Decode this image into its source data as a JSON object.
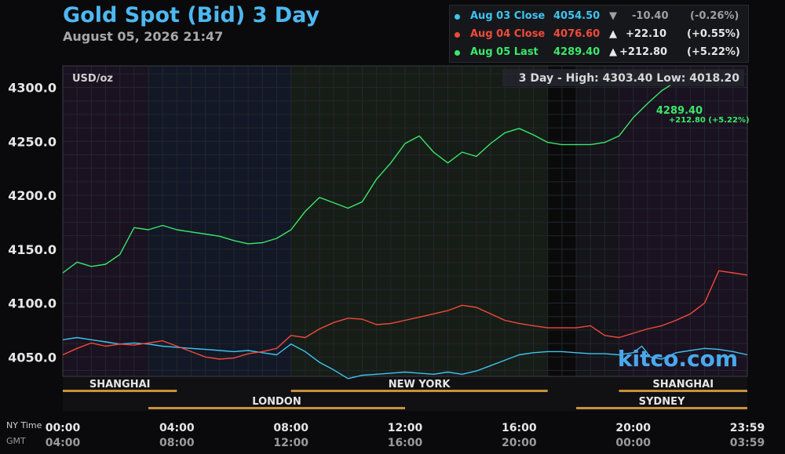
{
  "header": {
    "title": "Gold Spot (Bid) 3 Day",
    "subtitle": "August 05, 2026 21:47"
  },
  "legend": [
    {
      "label": "Aug 03 Close",
      "price": "4054.50",
      "arrow": "▼",
      "change": "-10.40",
      "pct": "(-0.26%)",
      "color": "#3ec4f0",
      "change_color": "#a0a0a0"
    },
    {
      "label": "Aug 04 Close",
      "price": "4076.60",
      "arrow": "▲",
      "change": "+22.10",
      "pct": "(+0.55%)",
      "color": "#f04a3a",
      "change_color": "#e8e8e8"
    },
    {
      "label": "Aug 05 Last",
      "price": "4289.40",
      "arrow": "▲",
      "change": "+212.80",
      "pct": "(+5.22%)",
      "color": "#3ae86a",
      "change_color": "#e8e8e8"
    }
  ],
  "chart_data": {
    "type": "line",
    "unit_label": "USD/oz",
    "range_text": "3 Day - High: 4303.40  Low: 4018.20",
    "ylim": [
      4032,
      4320
    ],
    "yticks": [
      {
        "v": 4050,
        "label": "4050.0"
      },
      {
        "v": 4100,
        "label": "4100.0"
      },
      {
        "v": 4150,
        "label": "4150.0"
      },
      {
        "v": 4200,
        "label": "4200.0"
      },
      {
        "v": 4250,
        "label": "4250.0"
      },
      {
        "v": 4300,
        "label": "4300.0"
      }
    ],
    "xlim": [
      0,
      24
    ],
    "xticks": [
      {
        "h": 0,
        "ny": "00:00",
        "gmt": "04:00"
      },
      {
        "h": 4,
        "ny": "04:00",
        "gmt": "08:00"
      },
      {
        "h": 8,
        "ny": "08:00",
        "gmt": "12:00"
      },
      {
        "h": 12,
        "ny": "12:00",
        "gmt": "16:00"
      },
      {
        "h": 16,
        "ny": "16:00",
        "gmt": "20:00"
      },
      {
        "h": 20,
        "ny": "20:00",
        "gmt": "00:00"
      },
      {
        "h": 24,
        "ny": "23:59",
        "gmt": "03:59"
      }
    ],
    "ny_time_label": "NY Time",
    "gmt_label": "GMT",
    "watermark": "kitco.com",
    "last_label": "4289.40",
    "last_change": "+212.80 (+5.22%)",
    "sessions": [
      {
        "name": "SHANGHAI",
        "start": 0,
        "end": 4,
        "row": 0
      },
      {
        "name": "NEW YORK",
        "start": 8,
        "end": 17,
        "row": 0
      },
      {
        "name": "SHANGHAI",
        "start": 19.5,
        "end": 24,
        "row": 0
      },
      {
        "name": "LONDON",
        "start": 3,
        "end": 12,
        "row": 1
      },
      {
        "name": "SYDNEY",
        "start": 18,
        "end": 24,
        "row": 1
      }
    ],
    "series": [
      {
        "name": "Aug 03 Close",
        "color": "#3ec4f0",
        "points": [
          [
            0,
            4066
          ],
          [
            0.5,
            4068
          ],
          [
            1,
            4066
          ],
          [
            1.5,
            4064
          ],
          [
            2,
            4062
          ],
          [
            2.5,
            4063
          ],
          [
            3,
            4062
          ],
          [
            3.5,
            4060
          ],
          [
            4,
            4059
          ],
          [
            4.5,
            4058
          ],
          [
            5,
            4057
          ],
          [
            5.5,
            4056
          ],
          [
            6,
            4055
          ],
          [
            6.5,
            4056
          ],
          [
            7,
            4054
          ],
          [
            7.5,
            4052
          ],
          [
            8,
            4062
          ],
          [
            8.5,
            4055
          ],
          [
            9,
            4045
          ],
          [
            9.5,
            4038
          ],
          [
            10,
            4030
          ],
          [
            10.5,
            4033
          ],
          [
            11,
            4034
          ],
          [
            11.5,
            4035
          ],
          [
            12,
            4036
          ],
          [
            12.5,
            4035
          ],
          [
            13,
            4034
          ],
          [
            13.5,
            4036
          ],
          [
            14,
            4034
          ],
          [
            14.5,
            4037
          ],
          [
            15,
            4042
          ],
          [
            15.5,
            4047
          ],
          [
            16,
            4052
          ],
          [
            16.5,
            4054
          ],
          [
            17,
            4055
          ],
          [
            17.5,
            4055
          ],
          [
            18,
            4054
          ],
          [
            18.5,
            4053
          ],
          [
            19,
            4053
          ],
          [
            19.5,
            4052
          ],
          [
            20,
            4054
          ],
          [
            20.3,
            4060
          ],
          [
            20.6,
            4050
          ],
          [
            21,
            4048
          ],
          [
            21.5,
            4054
          ],
          [
            22,
            4056
          ],
          [
            22.5,
            4058
          ],
          [
            23,
            4057
          ],
          [
            23.5,
            4055
          ],
          [
            24,
            4052
          ]
        ]
      },
      {
        "name": "Aug 04 Close",
        "color": "#f04a3a",
        "points": [
          [
            0,
            4052
          ],
          [
            0.5,
            4058
          ],
          [
            1,
            4063
          ],
          [
            1.5,
            4060
          ],
          [
            2,
            4062
          ],
          [
            2.5,
            4061
          ],
          [
            3,
            4063
          ],
          [
            3.5,
            4065
          ],
          [
            4,
            4060
          ],
          [
            4.5,
            4055
          ],
          [
            5,
            4050
          ],
          [
            5.5,
            4048
          ],
          [
            6,
            4049
          ],
          [
            6.5,
            4053
          ],
          [
            7,
            4055
          ],
          [
            7.5,
            4058
          ],
          [
            8,
            4070
          ],
          [
            8.5,
            4068
          ],
          [
            9,
            4076
          ],
          [
            9.5,
            4082
          ],
          [
            10,
            4086
          ],
          [
            10.5,
            4085
          ],
          [
            11,
            4080
          ],
          [
            11.5,
            4081
          ],
          [
            12,
            4084
          ],
          [
            12.5,
            4087
          ],
          [
            13,
            4090
          ],
          [
            13.5,
            4093
          ],
          [
            14,
            4098
          ],
          [
            14.5,
            4096
          ],
          [
            15,
            4090
          ],
          [
            15.5,
            4084
          ],
          [
            16,
            4081
          ],
          [
            16.5,
            4079
          ],
          [
            17,
            4077
          ],
          [
            17.5,
            4077
          ],
          [
            18,
            4077
          ],
          [
            18.5,
            4079
          ],
          [
            19,
            4070
          ],
          [
            19.5,
            4068
          ],
          [
            20,
            4072
          ],
          [
            20.5,
            4076
          ],
          [
            21,
            4079
          ],
          [
            21.5,
            4084
          ],
          [
            22,
            4090
          ],
          [
            22.5,
            4100
          ],
          [
            23,
            4130
          ],
          [
            23.5,
            4128
          ],
          [
            24,
            4126
          ]
        ]
      },
      {
        "name": "Aug 05 Last",
        "color": "#3ae86a",
        "points": [
          [
            0,
            4128
          ],
          [
            0.5,
            4138
          ],
          [
            1,
            4134
          ],
          [
            1.5,
            4136
          ],
          [
            2,
            4145
          ],
          [
            2.5,
            4170
          ],
          [
            3,
            4168
          ],
          [
            3.5,
            4172
          ],
          [
            4,
            4168
          ],
          [
            4.5,
            4166
          ],
          [
            5,
            4164
          ],
          [
            5.5,
            4162
          ],
          [
            6,
            4158
          ],
          [
            6.5,
            4155
          ],
          [
            7,
            4156
          ],
          [
            7.5,
            4160
          ],
          [
            8,
            4168
          ],
          [
            8.5,
            4185
          ],
          [
            9,
            4198
          ],
          [
            9.5,
            4193
          ],
          [
            10,
            4188
          ],
          [
            10.5,
            4194
          ],
          [
            11,
            4215
          ],
          [
            11.5,
            4230
          ],
          [
            12,
            4248
          ],
          [
            12.5,
            4255
          ],
          [
            13,
            4240
          ],
          [
            13.5,
            4230
          ],
          [
            14,
            4240
          ],
          [
            14.5,
            4236
          ],
          [
            15,
            4248
          ],
          [
            15.5,
            4258
          ],
          [
            16,
            4262
          ],
          [
            16.5,
            4256
          ],
          [
            17,
            4249
          ],
          [
            17.5,
            4247
          ],
          [
            18,
            4247
          ],
          [
            18.5,
            4247
          ],
          [
            19,
            4249
          ],
          [
            19.5,
            4255
          ],
          [
            20,
            4272
          ],
          [
            20.5,
            4285
          ],
          [
            21,
            4297
          ],
          [
            21.3,
            4302
          ]
        ]
      }
    ]
  }
}
